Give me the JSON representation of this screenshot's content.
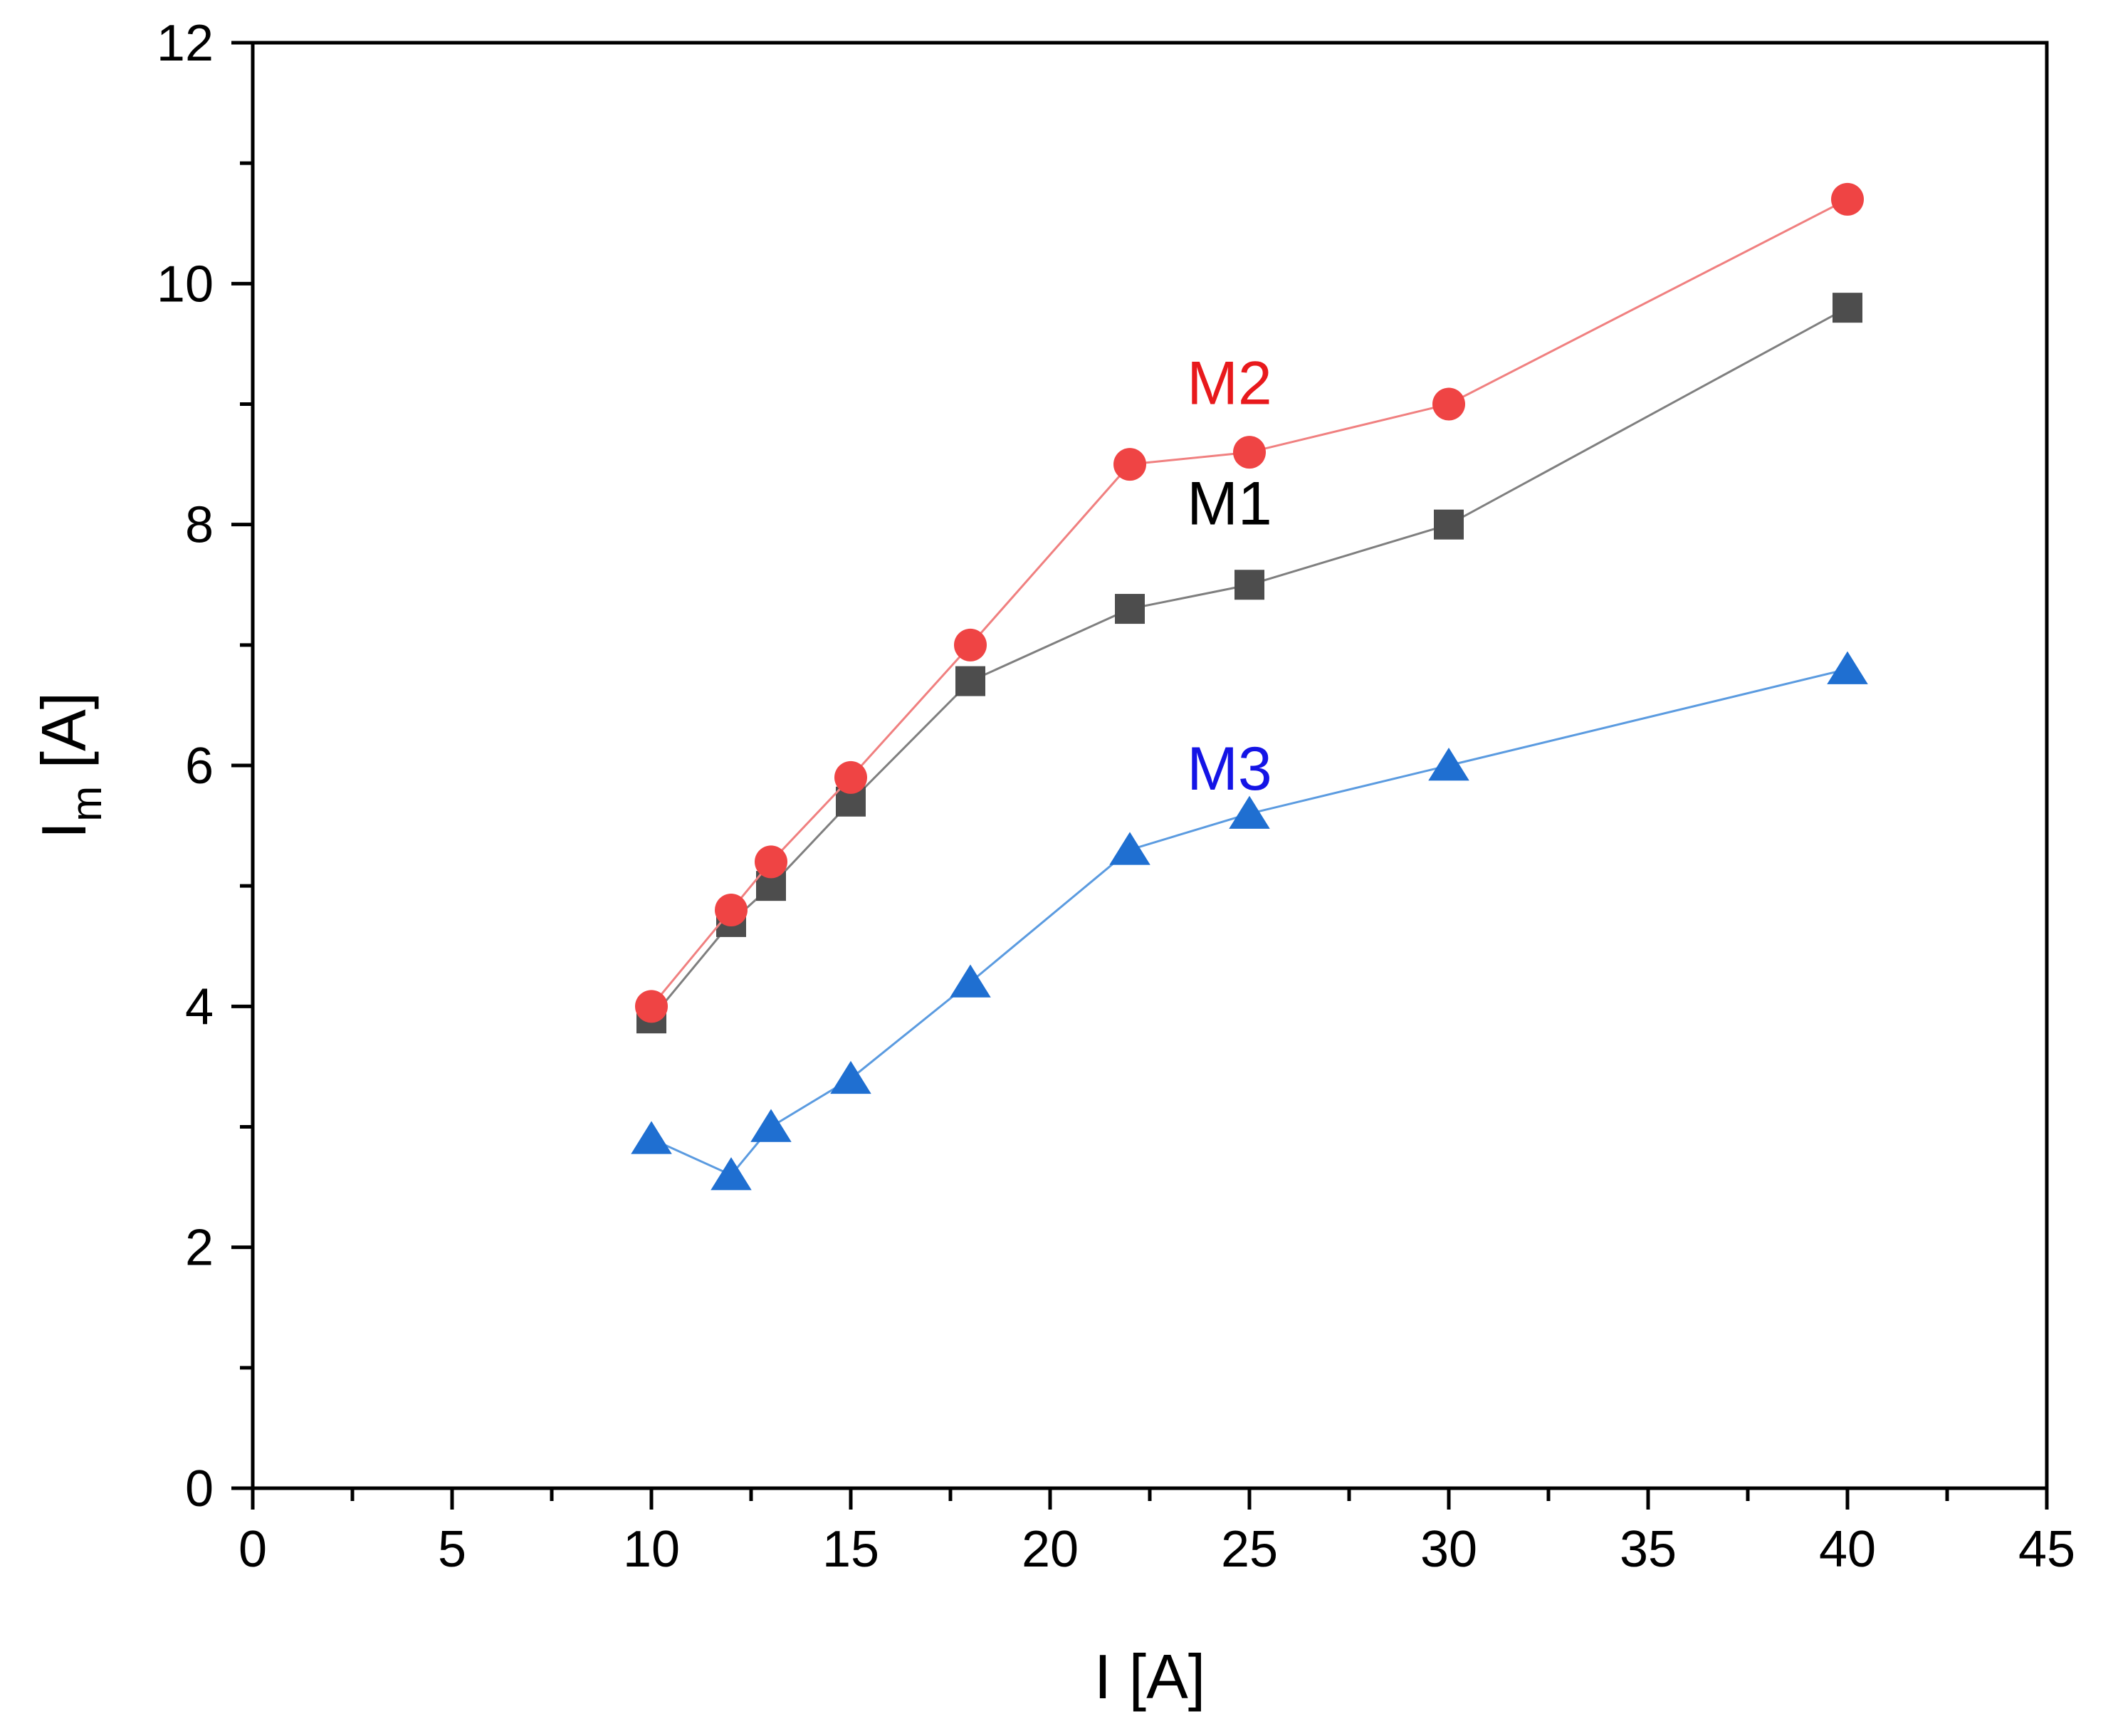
{
  "chart_data": {
    "type": "line",
    "title": "",
    "xlabel": "I [A]",
    "ylabel_main": "I",
    "ylabel_sub": "m",
    "ylabel_unit": " [A]",
    "xlim": [
      0,
      45
    ],
    "ylim": [
      0,
      12
    ],
    "x_ticks": [
      "0",
      "5",
      "10",
      "15",
      "20",
      "25",
      "30",
      "35",
      "40",
      "45"
    ],
    "y_ticks": [
      "0",
      "2",
      "4",
      "6",
      "8",
      "10",
      "12"
    ],
    "x": [
      10,
      12,
      13,
      15,
      18,
      22,
      25,
      30,
      40
    ],
    "series": [
      {
        "name": "M1",
        "marker": "square",
        "color": "#4d4d4d",
        "line_color": "#7f7f7f",
        "label_color": "#000000",
        "label_anchor": [
          24.5,
          8.0
        ],
        "values": [
          3.9,
          4.7,
          5.0,
          5.7,
          6.7,
          7.3,
          7.5,
          8.0,
          9.8
        ]
      },
      {
        "name": "M2",
        "marker": "circle",
        "color": "#ef4444",
        "line_color": "#f08080",
        "label_color": "#e8191c",
        "label_anchor": [
          24.5,
          9.0
        ],
        "values": [
          4.0,
          4.8,
          5.2,
          5.9,
          7.0,
          8.5,
          8.6,
          9.0,
          10.7
        ]
      },
      {
        "name": "M3",
        "marker": "triangle",
        "color": "#1f6fd1",
        "line_color": "#5b9be0",
        "label_color": "#1414e6",
        "label_anchor": [
          24.5,
          5.8
        ],
        "values": [
          2.9,
          2.6,
          3.0,
          3.4,
          4.2,
          5.3,
          5.6,
          6.0,
          6.8
        ]
      }
    ],
    "legend": "inline labels",
    "grid": false
  }
}
